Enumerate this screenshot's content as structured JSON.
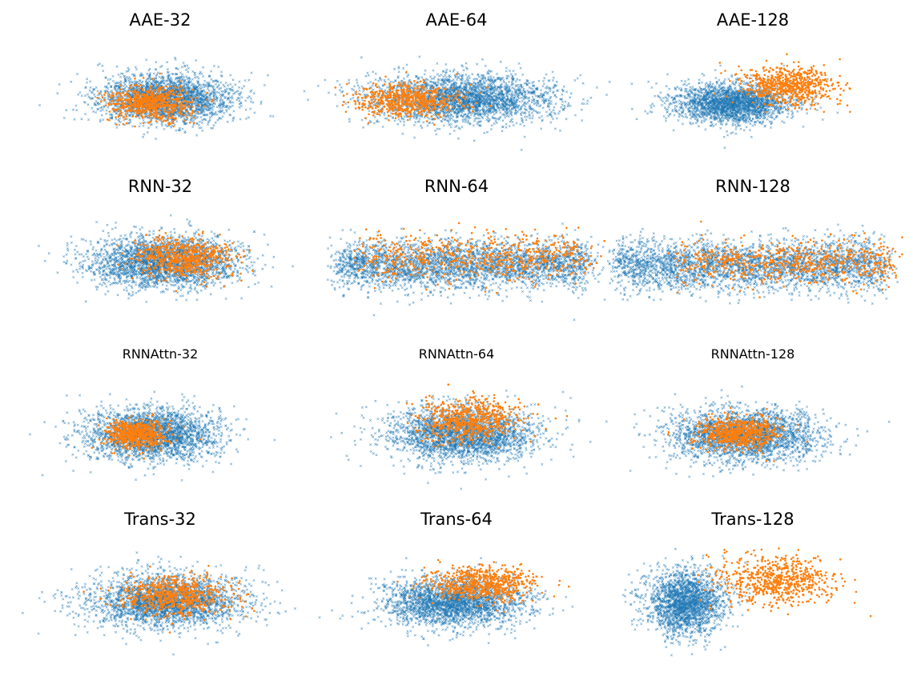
{
  "colors": {
    "background": "#ffffff",
    "reference": "#1f77b4",
    "generated": "#ff7f0e"
  },
  "chart_data": [
    {
      "type": "scatter",
      "title": "AAE-32",
      "series": [
        {
          "color": "#1f77b4",
          "shape": "ellipse",
          "center": [
            0.52,
            0.52
          ],
          "spread": [
            0.23,
            0.17
          ],
          "count": 2400,
          "marker": "x"
        },
        {
          "color": "#ff7f0e",
          "shape": "ellipse",
          "center": [
            0.47,
            0.55
          ],
          "spread": [
            0.14,
            0.12
          ],
          "count": 650,
          "marker": "dot"
        }
      ]
    },
    {
      "type": "scatter",
      "title": "AAE-64",
      "series": [
        {
          "color": "#1f77b4",
          "shape": "ellipse",
          "center": [
            0.52,
            0.52
          ],
          "spread": [
            0.31,
            0.17
          ],
          "count": 2600,
          "marker": "x"
        },
        {
          "color": "#ff7f0e",
          "shape": "ellipse",
          "center": [
            0.33,
            0.53
          ],
          "spread": [
            0.17,
            0.12
          ],
          "count": 650,
          "marker": "dot"
        }
      ]
    },
    {
      "type": "scatter",
      "title": "AAE-128",
      "series": [
        {
          "color": "#1f77b4",
          "shape": "ellipse",
          "center": [
            0.43,
            0.55
          ],
          "spread": [
            0.2,
            0.14
          ],
          "count": 2200,
          "marker": "x"
        },
        {
          "color": "#ff7f0e",
          "shape": "ellipse",
          "center": [
            0.62,
            0.43
          ],
          "spread": [
            0.16,
            0.14
          ],
          "count": 650,
          "marker": "dot"
        }
      ]
    },
    {
      "type": "scatter",
      "title": "RNN-32",
      "series": [
        {
          "color": "#1f77b4",
          "shape": "ellipse",
          "center": [
            0.51,
            0.5
          ],
          "spread": [
            0.25,
            0.18
          ],
          "count": 2600,
          "marker": "x"
        },
        {
          "color": "#ff7f0e",
          "shape": "ellipse",
          "center": [
            0.58,
            0.47
          ],
          "spread": [
            0.17,
            0.14
          ],
          "count": 650,
          "marker": "dot"
        }
      ]
    },
    {
      "type": "scatter",
      "title": "RNN-64",
      "series": [
        {
          "color": "#1f77b4",
          "shape": "band",
          "center": [
            0.52,
            0.52
          ],
          "spread": [
            0.42,
            0.17
          ],
          "count": 3000,
          "marker": "x"
        },
        {
          "color": "#ff7f0e",
          "shape": "band",
          "center": [
            0.56,
            0.46
          ],
          "spread": [
            0.38,
            0.17
          ],
          "count": 650,
          "marker": "dot"
        }
      ]
    },
    {
      "type": "scatter",
      "title": "RNN-128",
      "series": [
        {
          "color": "#1f77b4",
          "shape": "band",
          "center": [
            0.49,
            0.52
          ],
          "spread": [
            0.45,
            0.18
          ],
          "count": 3000,
          "marker": "x"
        },
        {
          "color": "#ff7f0e",
          "shape": "band",
          "center": [
            0.62,
            0.5
          ],
          "spread": [
            0.36,
            0.15
          ],
          "count": 650,
          "marker": "dot"
        }
      ]
    },
    {
      "type": "scatter",
      "title": "RNNAttn-32",
      "series": [
        {
          "color": "#1f77b4",
          "shape": "ellipse",
          "center": [
            0.47,
            0.54
          ],
          "spread": [
            0.23,
            0.18
          ],
          "count": 2400,
          "marker": "x"
        },
        {
          "color": "#ff7f0e",
          "shape": "ellipse",
          "center": [
            0.42,
            0.54
          ],
          "spread": [
            0.1,
            0.1
          ],
          "count": 650,
          "marker": "dot"
        }
      ]
    },
    {
      "type": "scatter",
      "title": "RNNAttn-64",
      "series": [
        {
          "color": "#1f77b4",
          "shape": "ellipse",
          "center": [
            0.52,
            0.54
          ],
          "spread": [
            0.25,
            0.19
          ],
          "count": 2500,
          "marker": "x"
        },
        {
          "color": "#ff7f0e",
          "shape": "ellipse",
          "center": [
            0.54,
            0.44
          ],
          "spread": [
            0.16,
            0.15
          ],
          "count": 650,
          "marker": "dot"
        }
      ]
    },
    {
      "type": "scatter",
      "title": "RNNAttn-128",
      "series": [
        {
          "color": "#1f77b4",
          "shape": "ellipse",
          "center": [
            0.47,
            0.55
          ],
          "spread": [
            0.25,
            0.18
          ],
          "count": 2500,
          "marker": "x"
        },
        {
          "color": "#ff7f0e",
          "shape": "ellipse",
          "center": [
            0.45,
            0.53
          ],
          "spread": [
            0.13,
            0.11
          ],
          "count": 650,
          "marker": "dot"
        }
      ]
    },
    {
      "type": "scatter",
      "title": "Trans-32",
      "series": [
        {
          "color": "#1f77b4",
          "shape": "ellipse",
          "center": [
            0.52,
            0.54
          ],
          "spread": [
            0.26,
            0.19
          ],
          "count": 2600,
          "marker": "x"
        },
        {
          "color": "#ff7f0e",
          "shape": "ellipse",
          "center": [
            0.55,
            0.5
          ],
          "spread": [
            0.18,
            0.14
          ],
          "count": 650,
          "marker": "dot"
        }
      ]
    },
    {
      "type": "scatter",
      "title": "Trans-64",
      "series": [
        {
          "color": "#1f77b4",
          "shape": "ellipse",
          "center": [
            0.49,
            0.55
          ],
          "spread": [
            0.24,
            0.17
          ],
          "count": 2400,
          "marker": "x"
        },
        {
          "color": "#ff7f0e",
          "shape": "ellipse",
          "center": [
            0.59,
            0.42
          ],
          "spread": [
            0.17,
            0.12
          ],
          "count": 650,
          "marker": "dot"
        }
      ]
    },
    {
      "type": "scatter",
      "title": "Trans-128",
      "series": [
        {
          "color": "#1f77b4",
          "shape": "ellipse",
          "center": [
            0.27,
            0.55
          ],
          "spread": [
            0.13,
            0.22
          ],
          "count": 2000,
          "marker": "x"
        },
        {
          "color": "#ff7f0e",
          "shape": "ellipse",
          "center": [
            0.58,
            0.4
          ],
          "spread": [
            0.2,
            0.17
          ],
          "count": 650,
          "marker": "dot"
        }
      ]
    }
  ]
}
